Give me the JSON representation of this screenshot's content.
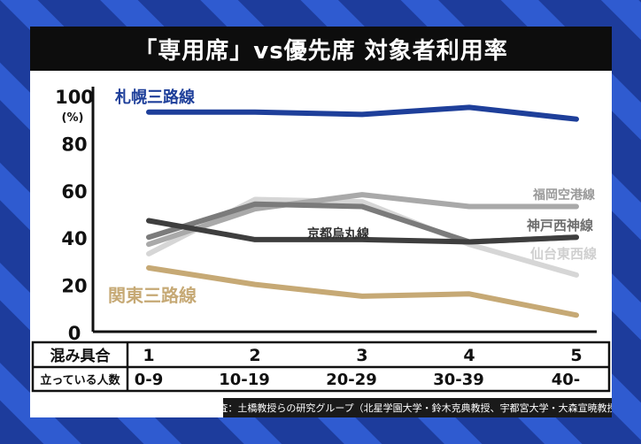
{
  "title": "「専用席」vs優先席 対象者利用率",
  "source": "調査：土橋教授らの研究グループ（北星学園大学・鈴木克典教授、宇都宮大学・大森宣暁教授）",
  "chart_data": {
    "type": "line",
    "title": "「専用席」vs優先席 対象者利用率",
    "ylabel": "(%)",
    "ylim": [
      0,
      100
    ],
    "yticks": [
      0,
      20,
      40,
      60,
      80,
      100
    ],
    "x": [
      1,
      2,
      3,
      4,
      5
    ],
    "table": {
      "row1_label": "混み具合",
      "row1_values": [
        "1",
        "2",
        "3",
        "4",
        "5"
      ],
      "row2_label": "立っている人数",
      "row2_values": [
        "0-9",
        "10-19",
        "20-29",
        "30-39",
        "40-"
      ]
    },
    "series": [
      {
        "name": "札幌三路線",
        "color": "#1e3f9a",
        "values": [
          93,
          93,
          92,
          95,
          90
        ]
      },
      {
        "name": "仙台東西線",
        "color": "#d6d6d6",
        "values": [
          33,
          56,
          55,
          37,
          24
        ]
      },
      {
        "name": "福岡空港線",
        "color": "#a9a9a9",
        "values": [
          37,
          52,
          58,
          53,
          53
        ]
      },
      {
        "name": "神戸西神線",
        "color": "#7b7b7b",
        "values": [
          40,
          54,
          53,
          38,
          40
        ]
      },
      {
        "name": "京都烏丸線",
        "color": "#3e3e3e",
        "values": [
          47,
          39,
          39,
          38,
          40
        ]
      },
      {
        "name": "関東三路線",
        "color": "#c6a975",
        "values": [
          27,
          20,
          15,
          16,
          7
        ]
      }
    ]
  }
}
